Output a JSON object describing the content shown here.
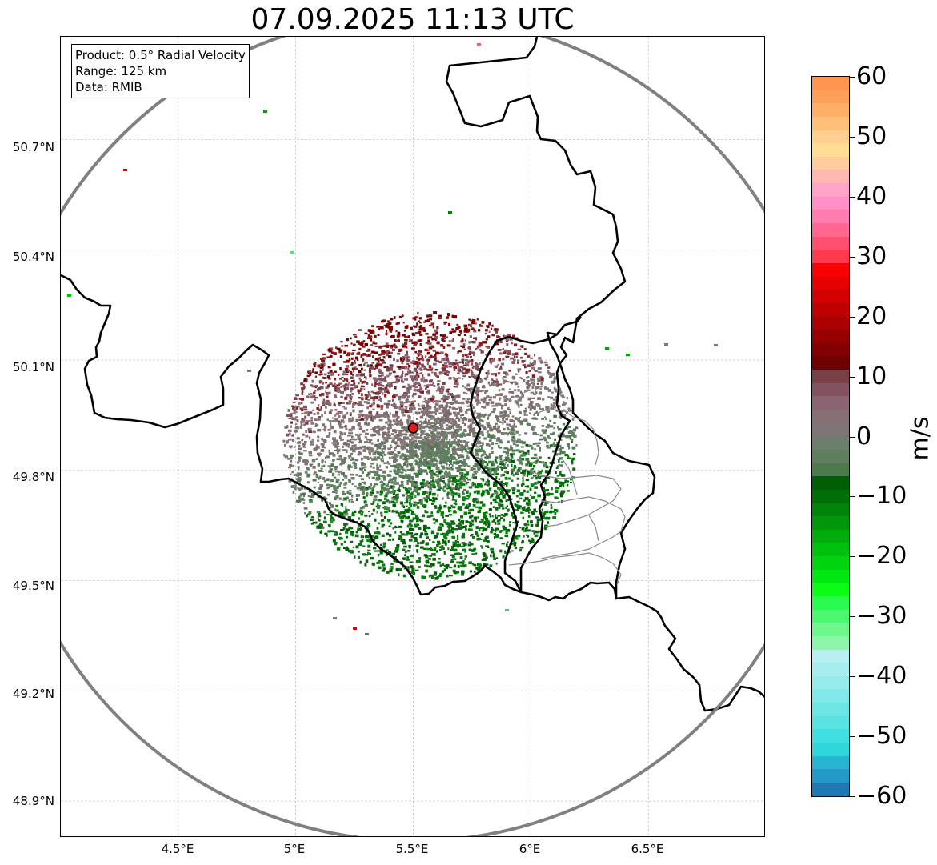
{
  "title": "07.09.2025 11:13 UTC",
  "info": {
    "product": "Product: 0.5° Radial Velocity",
    "range": "Range: 125 km",
    "data": "Data: RMIB"
  },
  "lat_labels": [
    "50.7°N",
    "50.4°N",
    "50.1°N",
    "49.8°N",
    "49.5°N",
    "49.2°N",
    "48.9°N"
  ],
  "lon_labels": [
    "4.5°E",
    "5°E",
    "5.5°E",
    "6°E",
    "6.5°E"
  ],
  "map": {
    "lon_range": [
      4.0,
      7.0
    ],
    "lat_range": [
      48.8,
      50.98
    ],
    "radar_site": {
      "lon": 5.5,
      "lat": 49.915
    },
    "range_km": 125,
    "range_ring_color": "#808080",
    "site_marker_color": "#e31a1c"
  },
  "colorbar": {
    "label": "m/s",
    "min": -60,
    "max": 60,
    "tick_labels": [
      "60",
      "50",
      "40",
      "30",
      "20",
      "10",
      "0",
      "−10",
      "−20",
      "−30",
      "−40",
      "−50",
      "−60"
    ],
    "colors": [
      "#1f78b4",
      "#2399c8",
      "#29b4d4",
      "#2fd6dc",
      "#40dfe0",
      "#58e2e2",
      "#6ee5e5",
      "#82e8e8",
      "#96ebeb",
      "#a8eded",
      "#b6f0f0",
      "#8ff5a8",
      "#6ef78a",
      "#4cf86d",
      "#2af94f",
      "#0cfc18",
      "#00e812",
      "#00d410",
      "#00c00e",
      "#00ac0c",
      "#00980a",
      "#008408",
      "#007006",
      "#005f05",
      "#4c7a4c",
      "#5e7e5e",
      "#6e7e6e",
      "#7e7676",
      "#867073",
      "#8a6472",
      "#825260",
      "#7a4048",
      "#6e0000",
      "#820000",
      "#960000",
      "#aa0000",
      "#be0000",
      "#d20000",
      "#e60000",
      "#fa0000",
      "#ff3a4c",
      "#ff5070",
      "#ff6690",
      "#ff7cae",
      "#ff90c8",
      "#ffa4c8",
      "#ffb8b0",
      "#ffcc9c",
      "#ffde94",
      "#ffd090",
      "#ffc07a",
      "#ffb066",
      "#ffa05a",
      "#ff9650"
    ]
  },
  "chart_data": {
    "type": "heatmap",
    "title": "07.09.2025 11:13 UTC",
    "xlabel": "",
    "ylabel": "",
    "x_ticks": [
      "4.5°E",
      "5°E",
      "5.5°E",
      "6°E",
      "6.5°E"
    ],
    "y_ticks": [
      "50.7°N",
      "50.4°N",
      "50.1°N",
      "49.8°N",
      "49.5°N",
      "49.2°N",
      "48.9°N"
    ],
    "value_label": "m/s",
    "value_range": [
      -60,
      60
    ],
    "echo_regions": [
      {
        "area": "north of radar",
        "velocity_ms": 12
      },
      {
        "area": "around radar",
        "velocity_ms": 2
      },
      {
        "area": "south-east of radar",
        "velocity_ms": -12
      }
    ]
  }
}
